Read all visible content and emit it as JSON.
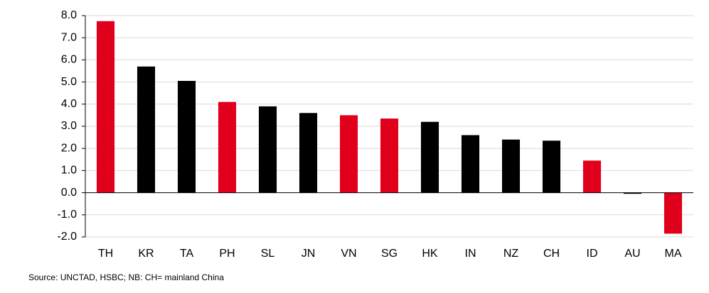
{
  "chart_data": {
    "type": "bar",
    "categories": [
      "TH",
      "KR",
      "TA",
      "PH",
      "SL",
      "JN",
      "VN",
      "SG",
      "HK",
      "IN",
      "NZ",
      "CH",
      "ID",
      "AU",
      "MA"
    ],
    "values": [
      7.75,
      5.7,
      5.05,
      4.1,
      3.9,
      3.6,
      3.5,
      3.35,
      3.2,
      2.6,
      2.4,
      2.35,
      1.45,
      -0.05,
      -1.85
    ],
    "colors": [
      "#e0001b",
      "#000000",
      "#000000",
      "#e0001b",
      "#000000",
      "#000000",
      "#e0001b",
      "#e0001b",
      "#000000",
      "#000000",
      "#000000",
      "#000000",
      "#e0001b",
      "#000000",
      "#e0001b"
    ],
    "ylim": [
      -2,
      8
    ],
    "yticks": [
      {
        "value": -2,
        "label": "-2.0"
      },
      {
        "value": -1,
        "label": "-1.0"
      },
      {
        "value": 0,
        "label": "0.0"
      },
      {
        "value": 1,
        "label": "1.0"
      },
      {
        "value": 2,
        "label": "2.0"
      },
      {
        "value": 3,
        "label": "3.0"
      },
      {
        "value": 4,
        "label": "4.0"
      },
      {
        "value": 5,
        "label": "5.0"
      },
      {
        "value": 6,
        "label": "6.0"
      },
      {
        "value": 7,
        "label": "7.0"
      },
      {
        "value": 8,
        "label": "8.0"
      }
    ],
    "grid": true,
    "source": "Source: UNCTAD, HSBC; NB: CH= mainland China"
  }
}
